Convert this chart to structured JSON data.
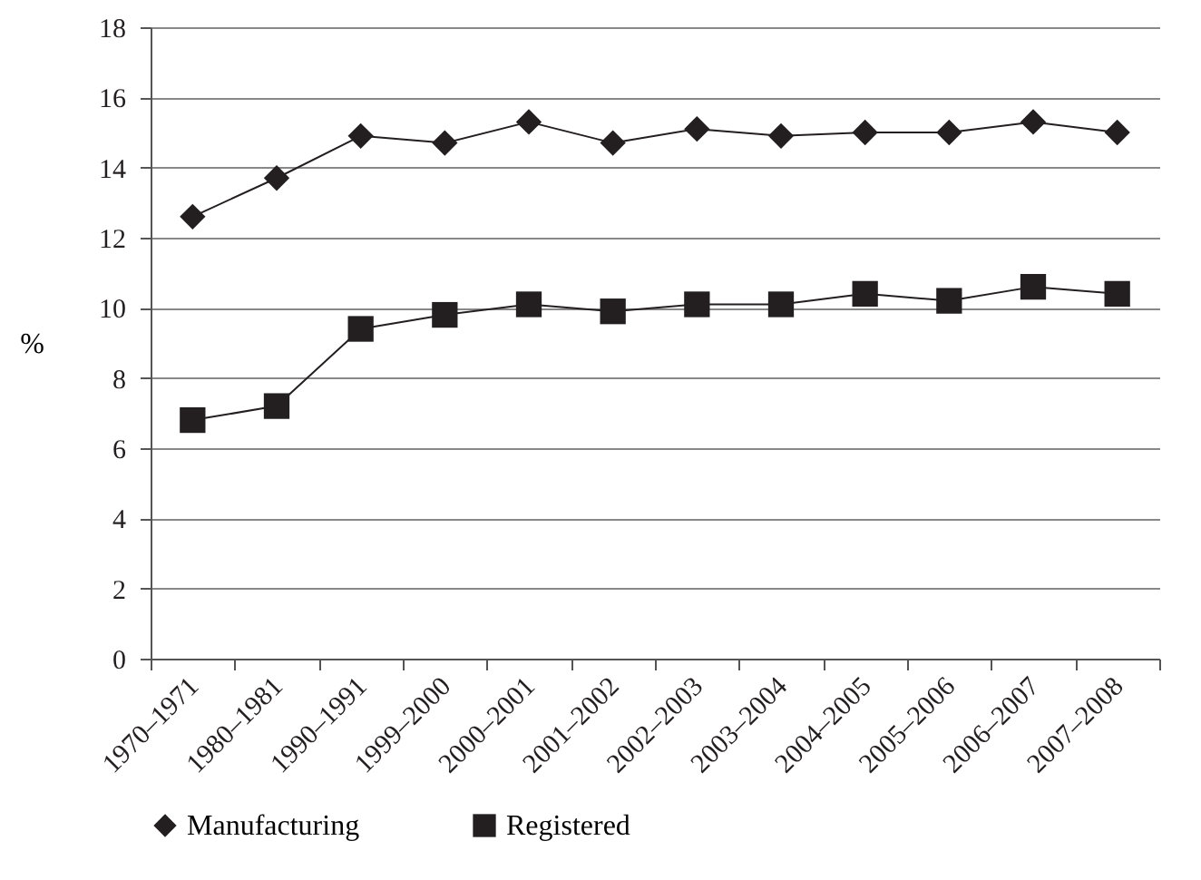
{
  "chart_data": {
    "type": "line",
    "ylabel": "%",
    "categories": [
      "1970–1971",
      "1980–1981",
      "1990–1991",
      "1999–2000",
      "2000–2001",
      "2001–2002",
      "2002–2003",
      "2003–2004",
      "2004–2005",
      "2005–2006",
      "2006–2007",
      "2007–2008"
    ],
    "series": [
      {
        "name": "Manufacturing",
        "color": "#231f20",
        "marker": "diamond",
        "values": [
          12.6,
          13.7,
          14.9,
          14.7,
          15.3,
          14.7,
          15.1,
          14.9,
          15.0,
          15.0,
          15.3,
          15.0
        ]
      },
      {
        "name": "Registered",
        "color": "#231f20",
        "marker": "square",
        "values": [
          6.8,
          7.2,
          9.4,
          9.8,
          10.1,
          9.9,
          10.1,
          10.1,
          10.4,
          10.2,
          10.6,
          10.4
        ]
      }
    ],
    "ylim": [
      0,
      18
    ],
    "yticks": [
      0,
      2,
      4,
      6,
      8,
      10,
      12,
      14,
      16,
      18
    ],
    "grid": "y",
    "legend": "bottom",
    "line_style": "solid"
  }
}
